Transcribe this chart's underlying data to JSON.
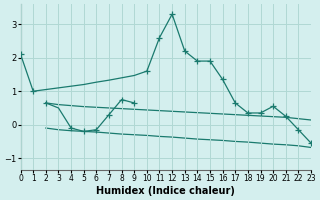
{
  "xlabel": "Humidex (Indice chaleur)",
  "bg_color": "#d4efee",
  "grid_color": "#b0d8d4",
  "line_color": "#1a7a6e",
  "xlim": [
    0,
    23
  ],
  "ylim": [
    -1.35,
    3.6
  ],
  "yticks": [
    -1,
    0,
    1,
    2,
    3
  ],
  "xticks": [
    0,
    1,
    2,
    3,
    4,
    5,
    6,
    7,
    8,
    9,
    10,
    11,
    12,
    13,
    14,
    15,
    16,
    17,
    18,
    19,
    20,
    21,
    22,
    23
  ],
  "lineA_x": [
    0,
    1,
    2,
    3,
    4,
    5,
    6,
    7,
    8,
    9,
    10,
    11,
    12,
    13,
    14,
    15,
    16,
    17,
    18,
    19,
    20,
    21,
    22,
    23
  ],
  "lineA_y": [
    2.1,
    1.0,
    1.05,
    1.1,
    1.15,
    1.2,
    1.27,
    1.33,
    1.4,
    1.47,
    1.6,
    2.6,
    3.3,
    2.2,
    1.9,
    1.9,
    1.35,
    0.65,
    0.35,
    0.35,
    0.55,
    0.25,
    -0.15,
    -0.55
  ],
  "lineA_mark_x": [
    0,
    1,
    10,
    11,
    12,
    13,
    14,
    15,
    16,
    17,
    18,
    19,
    20,
    21,
    22,
    23
  ],
  "lineA_mark_y": [
    2.1,
    1.0,
    1.6,
    2.6,
    3.3,
    2.2,
    1.9,
    1.9,
    1.35,
    0.65,
    0.35,
    0.35,
    0.55,
    0.25,
    -0.15,
    -0.55
  ],
  "lineB_x": [
    2,
    3,
    4,
    5,
    6,
    7,
    8,
    9
  ],
  "lineB_y": [
    0.65,
    0.5,
    -0.1,
    -0.2,
    -0.15,
    0.3,
    0.75,
    0.65
  ],
  "lineB_mark_x": [
    2,
    4,
    5,
    6,
    7,
    8,
    9
  ],
  "lineB_mark_y": [
    0.65,
    -0.1,
    -0.2,
    -0.15,
    0.3,
    0.75,
    0.65
  ],
  "lineC_x": [
    2,
    3,
    4,
    5,
    6,
    7,
    8,
    9,
    10,
    11,
    12,
    13,
    14,
    15,
    16,
    17,
    18,
    19,
    20,
    21,
    22,
    23
  ],
  "lineC_y": [
    0.65,
    0.6,
    0.57,
    0.54,
    0.52,
    0.5,
    0.48,
    0.46,
    0.44,
    0.42,
    0.4,
    0.38,
    0.36,
    0.34,
    0.32,
    0.3,
    0.28,
    0.26,
    0.24,
    0.22,
    0.18,
    0.14
  ],
  "lineD_x": [
    2,
    3,
    4,
    5,
    6,
    7,
    8,
    9,
    10,
    11,
    12,
    13,
    14,
    15,
    16,
    17,
    18,
    19,
    20,
    21,
    22,
    23
  ],
  "lineD_y": [
    -0.1,
    -0.15,
    -0.18,
    -0.2,
    -0.22,
    -0.25,
    -0.28,
    -0.3,
    -0.32,
    -0.35,
    -0.37,
    -0.4,
    -0.43,
    -0.45,
    -0.47,
    -0.5,
    -0.52,
    -0.55,
    -0.58,
    -0.6,
    -0.63,
    -0.68
  ]
}
